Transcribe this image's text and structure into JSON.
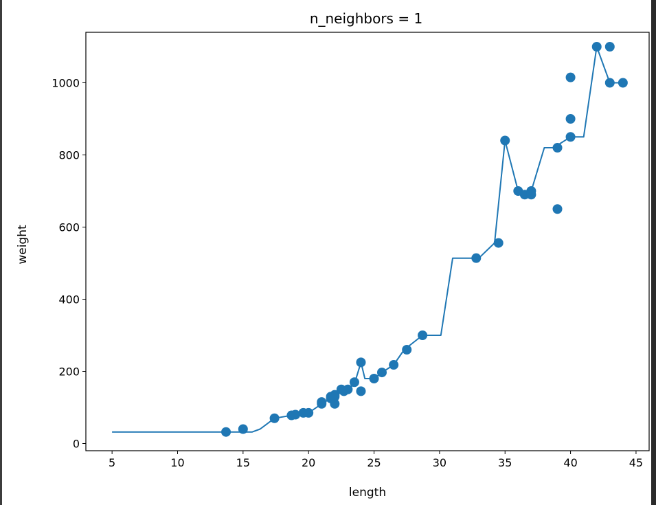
{
  "chart_data": {
    "type": "scatter",
    "title": "n_neighbors = 1",
    "xlabel": "length",
    "ylabel": "weight",
    "xlim": [
      3,
      46
    ],
    "ylim": [
      -20,
      1140
    ],
    "xticks": [
      5,
      10,
      15,
      20,
      25,
      30,
      35,
      40,
      45
    ],
    "yticks": [
      0,
      200,
      400,
      600,
      800,
      1000
    ],
    "grid": false,
    "colors": {
      "series": "#1f77b4"
    },
    "series": [
      {
        "type": "scatter",
        "x": [
          13.7,
          15.0,
          17.4,
          18.7,
          19.0,
          19.6,
          20.0,
          21.0,
          21.0,
          21.7,
          21.7,
          22.0,
          22.0,
          22.0,
          22.5,
          22.7,
          23.0,
          23.5,
          24.0,
          24.0,
          25.0,
          25.6,
          26.5,
          27.5,
          28.7,
          32.8,
          34.5,
          35.0,
          36.0,
          36.5,
          37.0,
          37.0,
          39.0,
          39.0,
          40.0,
          40.0,
          40.0,
          42.0,
          43.0,
          43.0,
          44.0
        ],
        "y": [
          32,
          40,
          70,
          78,
          80,
          85,
          85,
          110,
          115,
          125,
          130,
          110,
          135,
          130,
          150,
          145,
          150,
          170,
          225,
          145,
          180,
          197,
          218,
          260,
          300,
          514,
          556,
          840,
          700,
          690,
          700,
          690,
          820,
          650,
          1015,
          900,
          850,
          1100,
          1100,
          1000,
          1000
        ]
      },
      {
        "type": "line",
        "x": [
          5,
          15.7,
          16.3,
          17.4,
          18.7,
          19.0,
          19.6,
          20.0,
          21.0,
          21.7,
          22.0,
          22.5,
          23.0,
          23.5,
          24.0,
          24.3,
          25.0,
          25.6,
          26.5,
          27.3,
          28.7,
          30.1,
          31.0,
          33.0,
          34.2,
          35.0,
          36.0,
          36.6,
          37.0,
          38.0,
          38.7,
          40.0,
          40.5,
          41.0,
          42.0,
          43.0,
          44.0
        ],
        "y": [
          32,
          32,
          40,
          70,
          78,
          80,
          85,
          85,
          110,
          125,
          130,
          150,
          150,
          165,
          225,
          180,
          180,
          197,
          218,
          260,
          300,
          300,
          514,
          514,
          556,
          840,
          700,
          690,
          700,
          820,
          820,
          850,
          850,
          850,
          1100,
          1000,
          1000
        ]
      }
    ]
  }
}
